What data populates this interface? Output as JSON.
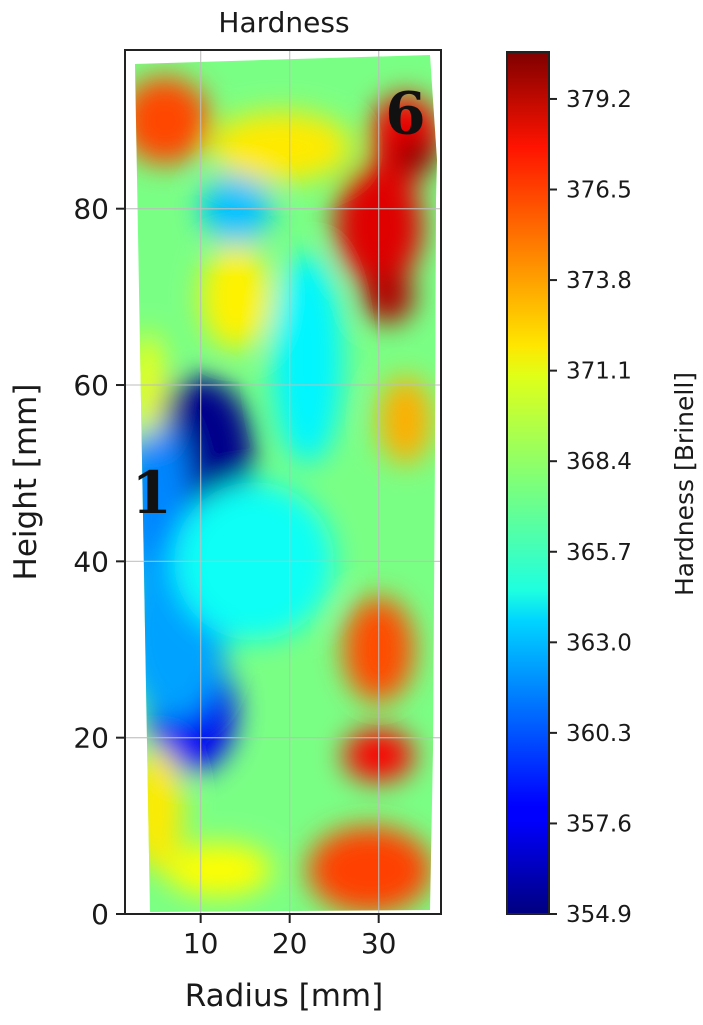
{
  "chart_data": {
    "type": "heatmap",
    "title": "Hardness",
    "xlabel": "Radius [mm]",
    "ylabel": "Height [mm]",
    "xlim": [
      1.5,
      37
    ],
    "ylim": [
      0,
      98
    ],
    "xticks": [
      10,
      20,
      30
    ],
    "xtick_labels": [
      "10",
      "20",
      "30"
    ],
    "yticks": [
      0,
      20,
      40,
      60,
      80
    ],
    "ytick_labels": [
      "0",
      "20",
      "40",
      "60",
      "80"
    ],
    "grid": true,
    "colorbar": {
      "label": "Hardness [Brinell]",
      "min": 354.9,
      "max": 380.6,
      "ticks": [
        354.9,
        357.6,
        360.3,
        363.0,
        365.7,
        368.4,
        371.1,
        373.8,
        376.5,
        379.2
      ],
      "tick_labels": [
        "354.9",
        "357.6",
        "360.3",
        "363.0",
        "365.7",
        "368.4",
        "371.1",
        "373.8",
        "376.5",
        "379.2"
      ],
      "colormap": "jet"
    },
    "markers": [
      {
        "label": "1",
        "x": 4.5,
        "y": 48
      },
      {
        "label": "6",
        "x": 33,
        "y": 91
      }
    ],
    "field_background": 367.6,
    "hot_spots": [
      {
        "x": 10,
        "y": 52,
        "value": 355.2,
        "rx": 6,
        "ry": 9
      },
      {
        "x": 5,
        "y": 45,
        "value": 361.5,
        "rx": 4,
        "ry": 12
      },
      {
        "x": 9,
        "y": 23,
        "value": 357.8,
        "rx": 5,
        "ry": 7
      },
      {
        "x": 7,
        "y": 32,
        "value": 362.2,
        "rx": 6,
        "ry": 10
      },
      {
        "x": 14,
        "y": 80,
        "value": 363.0,
        "rx": 4,
        "ry": 4
      },
      {
        "x": 22,
        "y": 63,
        "value": 364.3,
        "rx": 4,
        "ry": 12
      },
      {
        "x": 16,
        "y": 40,
        "value": 364.8,
        "rx": 9,
        "ry": 9
      },
      {
        "x": 6,
        "y": 90,
        "value": 375.6,
        "rx": 5,
        "ry": 5
      },
      {
        "x": 19,
        "y": 87,
        "value": 371.5,
        "rx": 8,
        "ry": 4
      },
      {
        "x": 14,
        "y": 70,
        "value": 371.3,
        "rx": 4,
        "ry": 6
      },
      {
        "x": 30,
        "y": 78,
        "value": 378.2,
        "rx": 5,
        "ry": 7
      },
      {
        "x": 31,
        "y": 70,
        "value": 379.4,
        "rx": 3,
        "ry": 3
      },
      {
        "x": 33,
        "y": 88,
        "value": 377.8,
        "rx": 4,
        "ry": 5
      },
      {
        "x": 34,
        "y": 86,
        "value": 380.5,
        "rx": 2.5,
        "ry": 2
      },
      {
        "x": 33,
        "y": 56,
        "value": 373.0,
        "rx": 3,
        "ry": 5
      },
      {
        "x": 30,
        "y": 30,
        "value": 375.5,
        "rx": 4,
        "ry": 6
      },
      {
        "x": 30,
        "y": 18,
        "value": 377.5,
        "rx": 4,
        "ry": 3
      },
      {
        "x": 29,
        "y": 5,
        "value": 375.8,
        "rx": 7,
        "ry": 5
      },
      {
        "x": 5,
        "y": 12,
        "value": 371.5,
        "rx": 3,
        "ry": 7
      },
      {
        "x": 12,
        "y": 5,
        "value": 371.0,
        "rx": 6,
        "ry": 3
      },
      {
        "x": 4,
        "y": 60,
        "value": 370.5,
        "rx": 2,
        "ry": 6
      }
    ]
  }
}
